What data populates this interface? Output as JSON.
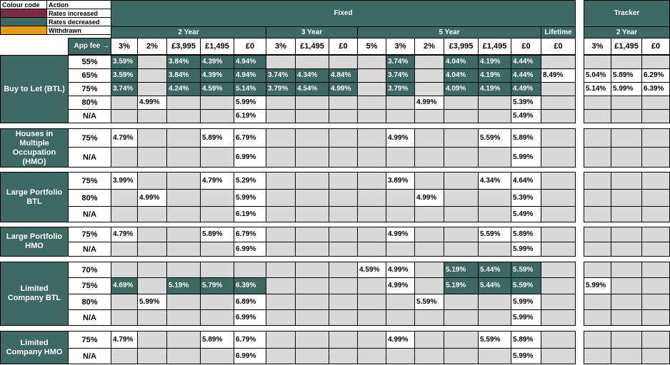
{
  "legend": {
    "header": [
      "Colour code",
      "Action"
    ],
    "items": [
      {
        "color": "#7b2c45",
        "label": "Rates increased"
      },
      {
        "color": "#3d6864",
        "label": "Rates decreased"
      },
      {
        "color": "#e39a1a",
        "label": "Withdrawn"
      }
    ]
  },
  "header": {
    "fixed": "Fixed",
    "tracker": "Tracker",
    "terms": [
      "2 Year",
      "3 Year",
      "5 Year",
      "Lifetime",
      "2 Year"
    ],
    "app_fee": "App fee →",
    "fees": [
      "3%",
      "2%",
      "£3,995",
      "£1,495",
      "£0",
      "3%",
      "£1,495",
      "£0",
      "5%",
      "3%",
      "2%",
      "£3,995",
      "£1,495",
      "£0",
      "£0",
      "3%",
      "£1,495",
      "£0"
    ]
  },
  "groups": [
    {
      "label": "Buy to Let (BTL)",
      "rows": [
        {
          "ltv": "55%",
          "cells": [
            {
              "text": "3.59%",
              "color": "#3d6864"
            },
            null,
            {
              "text": "3.84%",
              "color": "#3d6864"
            },
            {
              "text": "4.39%",
              "color": "#3d6864"
            },
            {
              "text": "4.94%",
              "color": "#3d6864"
            },
            null,
            null,
            null,
            null,
            {
              "text": "3.74%",
              "color": "#3d6864"
            },
            null,
            {
              "text": "4.04%",
              "color": "#3d6864"
            },
            {
              "text": "4.19%",
              "color": "#3d6864"
            },
            {
              "text": "4.44%",
              "color": "#3d6864"
            },
            null,
            null,
            null,
            null
          ]
        },
        {
          "ltv": "65%",
          "cells": [
            {
              "text": "3.59%",
              "color": "#3d6864"
            },
            null,
            {
              "text": "3.84%",
              "color": "#3d6864"
            },
            {
              "text": "4.39%",
              "color": "#3d6864"
            },
            {
              "text": "4.94%",
              "color": "#3d6864"
            },
            {
              "text": "3.74%",
              "color": "#3d6864"
            },
            {
              "text": "4.34%",
              "color": "#3d6864"
            },
            {
              "text": "4.84%",
              "color": "#3d6864"
            },
            null,
            {
              "text": "3.74%",
              "color": "#3d6864"
            },
            null,
            {
              "text": "4.04%",
              "color": "#3d6864"
            },
            {
              "text": "4.19%",
              "color": "#3d6864"
            },
            {
              "text": "4.44%",
              "color": "#3d6864"
            },
            "8.49%",
            "5.04%",
            "5.89%",
            "6.29%"
          ]
        },
        {
          "ltv": "75%",
          "cells": [
            {
              "text": "3.74%",
              "color": "#3d6864"
            },
            null,
            {
              "text": "4.24%",
              "color": "#3d6864"
            },
            {
              "text": "4.59%",
              "color": "#3d6864"
            },
            {
              "text": "5.14%",
              "color": "#3d6864"
            },
            {
              "text": "3.79%",
              "color": "#3d6864"
            },
            {
              "text": "4.54%",
              "color": "#3d6864"
            },
            {
              "text": "4.99%",
              "color": "#3d6864"
            },
            null,
            {
              "text": "3.79%",
              "color": "#3d6864"
            },
            null,
            {
              "text": "4.09%",
              "color": "#3d6864"
            },
            {
              "text": "4.19%",
              "color": "#3d6864"
            },
            {
              "text": "4.49%",
              "color": "#3d6864"
            },
            null,
            "5.14%",
            "5.99%",
            "6.39%"
          ]
        },
        {
          "ltv": "80%",
          "cells": [
            null,
            "4.99%",
            null,
            null,
            "5.99%",
            null,
            null,
            null,
            null,
            null,
            "4.99%",
            null,
            null,
            "5.39%",
            null,
            null,
            null,
            null
          ]
        },
        {
          "ltv": "N/A",
          "cells": [
            null,
            null,
            null,
            null,
            "6.19%",
            null,
            null,
            null,
            null,
            null,
            null,
            null,
            null,
            "5.49%",
            null,
            null,
            null,
            null
          ]
        }
      ]
    },
    {
      "label": "Houses in Multiple Occupation (HMO)",
      "rows": [
        {
          "ltv": "75%",
          "cells": [
            "4.79%",
            null,
            null,
            "5.89%",
            "6.79%",
            null,
            null,
            null,
            null,
            "4.99%",
            null,
            null,
            "5.59%",
            "5.89%",
            null,
            null,
            null,
            null
          ]
        },
        {
          "ltv": "N/A",
          "cells": [
            null,
            null,
            null,
            null,
            "6.99%",
            null,
            null,
            null,
            null,
            null,
            null,
            null,
            null,
            "5.99%",
            null,
            null,
            null,
            null
          ]
        }
      ]
    },
    {
      "label": "Large Portfolio BTL",
      "rows": [
        {
          "ltv": "75%",
          "cells": [
            "3.99%",
            null,
            null,
            "4.79%",
            "5.29%",
            null,
            null,
            null,
            null,
            "3.89%",
            null,
            null,
            "4.34%",
            "4.64%",
            null,
            null,
            null,
            null
          ]
        },
        {
          "ltv": "80%",
          "cells": [
            null,
            "4.99%",
            null,
            null,
            "5.99%",
            null,
            null,
            null,
            null,
            null,
            "4.99%",
            null,
            null,
            "5.39%",
            null,
            null,
            null,
            null
          ]
        },
        {
          "ltv": "N/A",
          "cells": [
            null,
            null,
            null,
            null,
            "6.19%",
            null,
            null,
            null,
            null,
            null,
            null,
            null,
            null,
            "5.49%",
            null,
            null,
            null,
            null
          ]
        }
      ]
    },
    {
      "label": "Large Portfolio HMO",
      "rows": [
        {
          "ltv": "75%",
          "cells": [
            "4.79%",
            null,
            null,
            "5.89%",
            "6.79%",
            null,
            null,
            null,
            null,
            "4.99%",
            null,
            null,
            "5.59%",
            "5.89%",
            null,
            null,
            null,
            null
          ]
        },
        {
          "ltv": "N/A",
          "cells": [
            null,
            null,
            null,
            null,
            "6.99%",
            null,
            null,
            null,
            null,
            null,
            null,
            null,
            null,
            "5.99%",
            null,
            null,
            null,
            null
          ]
        }
      ]
    },
    {
      "label": "Limited Company BTL",
      "rows": [
        {
          "ltv": "70%",
          "cells": [
            null,
            null,
            null,
            null,
            null,
            null,
            null,
            null,
            "4.59%",
            "4.99%",
            null,
            {
              "text": "5.19%",
              "color": "#3d6864"
            },
            {
              "text": "5.44%",
              "color": "#3d6864"
            },
            {
              "text": "5.59%",
              "color": "#3d6864"
            },
            null,
            null,
            null,
            null
          ]
        },
        {
          "ltv": "75%",
          "cells": [
            {
              "text": "4.69%",
              "color": "#3d6864"
            },
            null,
            {
              "text": "5.19%",
              "color": "#3d6864"
            },
            {
              "text": "5.79%",
              "color": "#3d6864"
            },
            {
              "text": "6.39%",
              "color": "#3d6864"
            },
            null,
            null,
            null,
            null,
            "4.99%",
            null,
            {
              "text": "5.19%",
              "color": "#3d6864"
            },
            {
              "text": "5.44%",
              "color": "#3d6864"
            },
            {
              "text": "5.59%",
              "color": "#3d6864"
            },
            null,
            "5.99%",
            null,
            null
          ]
        },
        {
          "ltv": "80%",
          "cells": [
            null,
            "5.99%",
            null,
            null,
            "6.89%",
            null,
            null,
            null,
            null,
            null,
            "5.59%",
            null,
            null,
            "5.99%",
            null,
            null,
            null,
            null
          ]
        },
        {
          "ltv": "N/A",
          "cells": [
            null,
            null,
            null,
            null,
            "6.99%",
            null,
            null,
            null,
            null,
            null,
            null,
            null,
            null,
            "5.99%",
            null,
            null,
            null,
            null
          ]
        }
      ]
    },
    {
      "label": "Limited Company HMO",
      "rows": [
        {
          "ltv": "75%",
          "cells": [
            "4.79%",
            null,
            null,
            "5.89%",
            "6.79%",
            null,
            null,
            null,
            null,
            "4.99%",
            null,
            null,
            "5.59%",
            "5.89%",
            null,
            null,
            null,
            null
          ]
        },
        {
          "ltv": "N/A",
          "cells": [
            null,
            null,
            null,
            null,
            "6.99%",
            null,
            null,
            null,
            null,
            null,
            null,
            null,
            null,
            "5.99%",
            null,
            null,
            null,
            null
          ]
        }
      ]
    }
  ]
}
